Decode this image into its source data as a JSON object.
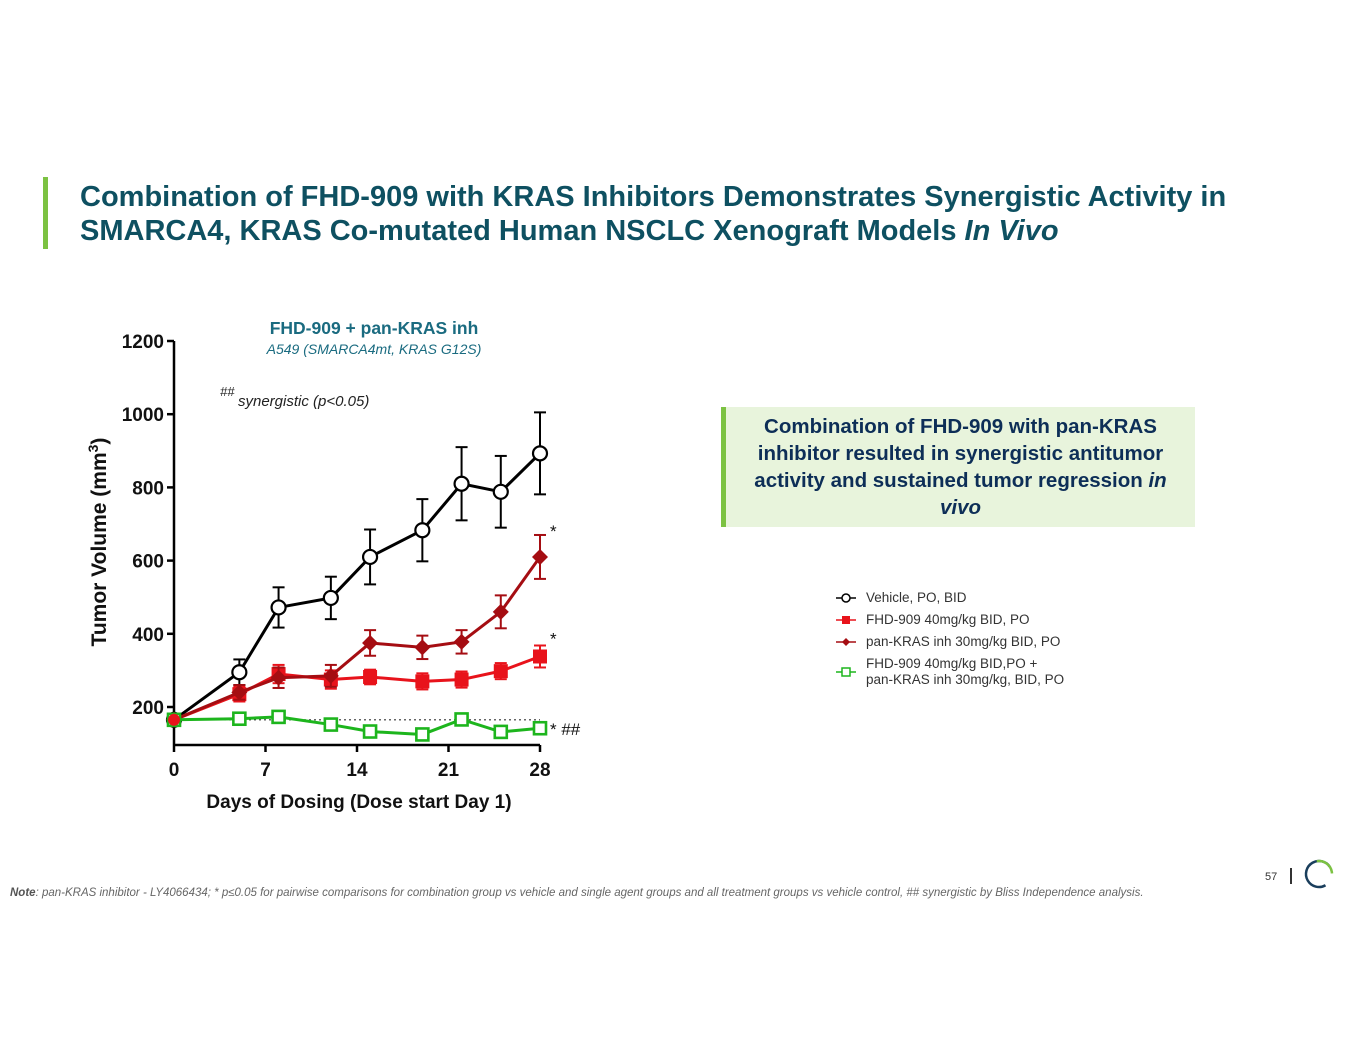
{
  "slide": {
    "title_main": "Combination of FHD-909 with KRAS Inhibitors Demonstrates Synergistic Activity in SMARCA4, KRAS Co-mutated Human NSCLC Xenograft Models ",
    "title_italic": "In Vivo",
    "callout_main": "Combination of FHD-909 with pan-KRAS inhibitor resulted in synergistic antitumor activity and sustained tumor regression ",
    "callout_italic": "in vivo",
    "note_label": "Note",
    "note_text": ": pan-KRAS inhibitor - LY4066434; * p≤0.05 for pairwise comparisons for combination group vs vehicle and single agent groups and all treatment groups vs vehicle control, ## synergistic by Bliss Independence analysis.",
    "page_number": "57"
  },
  "colors": {
    "title": "#0e5061",
    "accent": "#7cc242",
    "vehicle": "#000000",
    "fhd909": "#e8131b",
    "pankras": "#a50d12",
    "combo": "#1db51d",
    "chart_title": "#1a6b80"
  },
  "chart_data": {
    "type": "line",
    "title": "FHD-909 + pan-KRAS inh",
    "subtitle": "A549 (SMARCA4mt, KRAS G12S)",
    "annotation": "synergistic (p<0.05)",
    "annotation_prefix": "##",
    "xlabel": "Days of Dosing (Dose start Day 1)",
    "ylabel": "Tumor Volume (mm",
    "ylabel_sup": "3",
    "ylabel_close": ")",
    "xlim": [
      0,
      28
    ],
    "ylim": [
      100,
      1200
    ],
    "xticks": [
      0,
      7,
      14,
      21,
      28
    ],
    "yticks": [
      200,
      400,
      600,
      800,
      1000,
      1200
    ],
    "baseline": 165,
    "series": [
      {
        "name": "Vehicle, PO, BID",
        "color": "#000000",
        "marker": "open-circle",
        "x": [
          0,
          5,
          8,
          12,
          15,
          19,
          22,
          25,
          28
        ],
        "values": [
          165,
          295,
          472,
          498,
          610,
          683,
          810,
          788,
          893
        ],
        "errors": [
          0,
          35,
          55,
          58,
          75,
          85,
          100,
          98,
          112
        ],
        "end_label": ""
      },
      {
        "name": "FHD-909 40mg/kg BID, PO",
        "color": "#e8131b",
        "marker": "square",
        "x": [
          0,
          5,
          8,
          12,
          15,
          19,
          22,
          25,
          28
        ],
        "values": [
          165,
          235,
          290,
          275,
          282,
          270,
          275,
          298,
          338
        ],
        "errors": [
          0,
          20,
          25,
          25,
          20,
          22,
          22,
          22,
          30
        ],
        "end_label": "*"
      },
      {
        "name": "pan-KRAS inh 30mg/kg BID, PO",
        "color": "#a50d12",
        "marker": "diamond",
        "x": [
          0,
          5,
          8,
          12,
          15,
          19,
          22,
          25,
          28
        ],
        "values": [
          165,
          240,
          280,
          285,
          375,
          363,
          378,
          460,
          610
        ],
        "errors": [
          0,
          20,
          28,
          30,
          35,
          32,
          32,
          45,
          60
        ],
        "end_label": "*"
      },
      {
        "name": "FHD-909 40mg/kg BID,PO + pan-KRAS inh 30mg/kg, BID, PO",
        "name_line1": "FHD-909 40mg/kg BID,PO +",
        "name_line2": "pan-KRAS inh 30mg/kg, BID, PO",
        "color": "#1db51d",
        "marker": "open-square",
        "x": [
          0,
          5,
          8,
          12,
          15,
          19,
          22,
          25,
          28
        ],
        "values": [
          165,
          168,
          173,
          152,
          133,
          125,
          166,
          132,
          142
        ],
        "errors": [
          0,
          5,
          5,
          5,
          5,
          5,
          5,
          5,
          5
        ],
        "end_label": "* ##"
      }
    ]
  }
}
